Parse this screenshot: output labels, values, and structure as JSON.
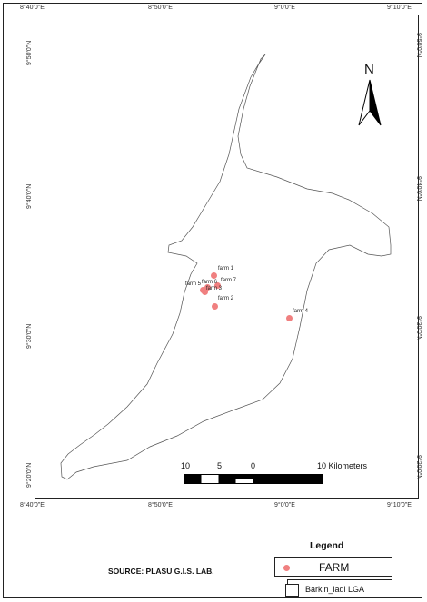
{
  "map": {
    "x_ticks": [
      "8°40'0\"E",
      "8°50'0\"E",
      "9°0'0\"E",
      "9°10'0\"E"
    ],
    "y_ticks": [
      "9°50'0\"N",
      "9°40'0\"N",
      "9°30'0\"N",
      "9°20'0\"N"
    ],
    "north_label": "N",
    "farms": [
      {
        "label": "farm 1"
      },
      {
        "label": "farm 7"
      },
      {
        "label": "farm 6"
      },
      {
        "label": "farm 5"
      },
      {
        "label": "farm 3"
      },
      {
        "label": "farm 2"
      },
      {
        "label": "farm 4"
      }
    ],
    "scale_bar": {
      "labels": [
        "10",
        "5",
        "0",
        "10 Kilometers"
      ]
    },
    "colors": {
      "farm_point": "#f08080",
      "boundary": "#555555"
    }
  },
  "source_text": "SOURCE: PLASU  G.I.S. LAB.",
  "legend": {
    "title": "Legend",
    "items": [
      {
        "label": "FARM",
        "icon": "circle-point"
      },
      {
        "label": "Barkin_ladi LGA",
        "icon": "polygon-outline"
      }
    ]
  }
}
